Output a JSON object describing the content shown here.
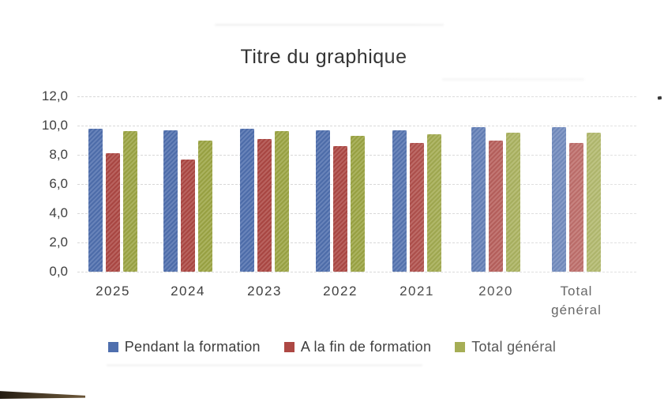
{
  "chart_data": {
    "type": "bar",
    "title": "Titre du graphique",
    "categories": [
      "2025",
      "2024",
      "2023",
      "2022",
      "2021",
      "2020",
      "Total général"
    ],
    "series": [
      {
        "name": "Pendant la formation",
        "color": "#4f6fae",
        "values": [
          9.8,
          9.7,
          9.8,
          9.7,
          9.7,
          9.9,
          9.9
        ]
      },
      {
        "name": "A la fin de formation",
        "color": "#ad4844",
        "values": [
          8.1,
          7.7,
          9.1,
          8.6,
          8.8,
          9.0,
          8.8
        ]
      },
      {
        "name": "Total général",
        "color": "#9ca544",
        "values": [
          9.6,
          9.0,
          9.6,
          9.3,
          9.4,
          9.5,
          9.5
        ]
      }
    ],
    "ylim": [
      0,
      12
    ],
    "ytick_values": [
      12,
      10,
      8,
      6,
      4,
      2,
      0
    ],
    "ytick_labels": [
      "12,0",
      "10,0",
      "8,0",
      "6,0",
      "4,0",
      "2,0",
      "0,0"
    ],
    "xlabel": "",
    "ylabel": "",
    "grid": true,
    "legend_position": "bottom"
  }
}
